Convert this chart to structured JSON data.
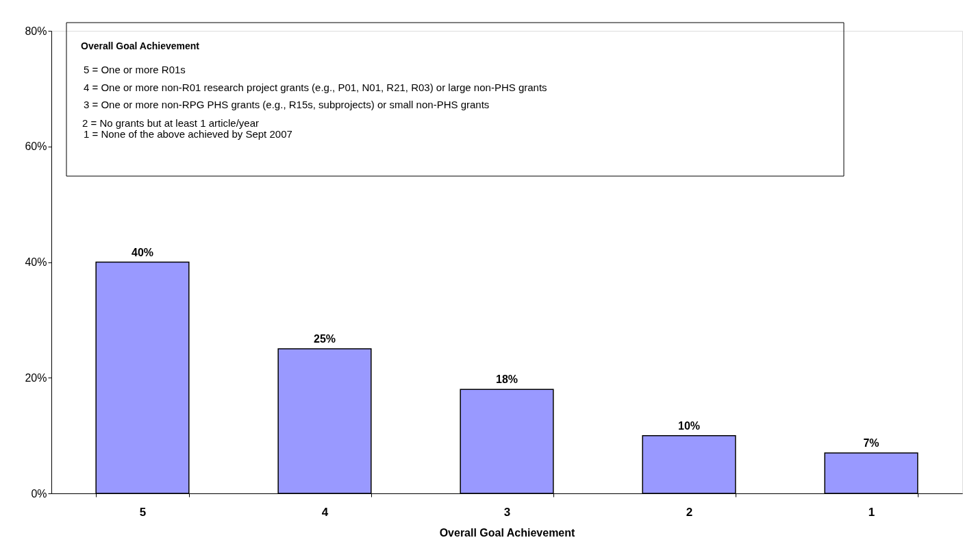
{
  "chart_data": {
    "type": "bar",
    "xlabel": "Overall Goal Achievement",
    "categories": [
      "5",
      "4",
      "3",
      "2",
      "1"
    ],
    "values": [
      40,
      25,
      18,
      10,
      7
    ],
    "value_labels": [
      "40%",
      "25%",
      "18%",
      "10%",
      "7%"
    ],
    "color": "#9999ff",
    "ylim": [
      0,
      80
    ],
    "yticks": [
      {
        "value": 0,
        "label": "0%"
      },
      {
        "value": 20,
        "label": "20%"
      },
      {
        "value": 40,
        "label": "40%"
      },
      {
        "value": 60,
        "label": "60%"
      },
      {
        "value": 80,
        "label": "80%"
      }
    ],
    "grid": false,
    "annotations": [
      "Overall Goal Achievement",
      "5 = One or more R01s",
      "4 = One or more non-R01 research project grants (e.g., P01, N01, R21, R03) or large non-PHS grants",
      "3 = One or more non-RPG PHS grants (e.g., R15s, subprojects) or small non-PHS grants",
      "2 = No grants but at least 1 article/year",
      "1 = None of the above achieved by Sept 2007"
    ]
  }
}
